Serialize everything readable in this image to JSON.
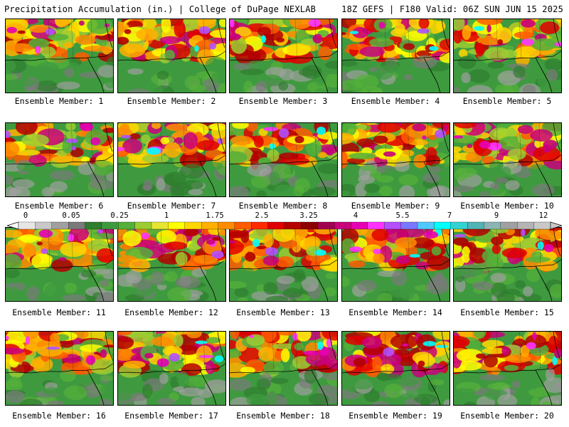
{
  "header": {
    "title": "Precipitation Accumulation (in.) | College of DuPage NEXLAB",
    "run_info": "18Z GEFS | F180 Valid: 06Z SUN JUN 15 2025"
  },
  "panels": [
    {
      "label": "Ensemble Member: 1"
    },
    {
      "label": "Ensemble Member: 2"
    },
    {
      "label": "Ensemble Member: 3"
    },
    {
      "label": "Ensemble Member: 4"
    },
    {
      "label": "Ensemble Member: 5"
    },
    {
      "label": "Ensemble Member: 6"
    },
    {
      "label": "Ensemble Member: 7"
    },
    {
      "label": "Ensemble Member: 8"
    },
    {
      "label": "Ensemble Member: 9"
    },
    {
      "label": "Ensemble Member: 10"
    },
    {
      "label": "Ensemble Member: 11"
    },
    {
      "label": "Ensemble Member: 12"
    },
    {
      "label": "Ensemble Member: 13"
    },
    {
      "label": "Ensemble Member: 14"
    },
    {
      "label": "Ensemble Member: 15"
    },
    {
      "label": "Ensemble Member: 16"
    },
    {
      "label": "Ensemble Member: 17"
    },
    {
      "label": "Ensemble Member: 18"
    },
    {
      "label": "Ensemble Member: 19"
    },
    {
      "label": "Ensemble Member: 20"
    }
  ],
  "colorbar": {
    "labels": [
      "0",
      "0.05",
      "0.25",
      "1",
      "1.75",
      "2.5",
      "3.25",
      "4",
      "5.5",
      "7",
      "9",
      "12"
    ],
    "colors": [
      "#e6e6e6",
      "#c8c8c8",
      "#a0a0a0",
      "#7a7a7a",
      "#2f7d2f",
      "#3f9a3f",
      "#55b03a",
      "#9ccc32",
      "#e6e632",
      "#ffff00",
      "#ffd700",
      "#ffb000",
      "#ff8c00",
      "#ff5a00",
      "#ff2a00",
      "#e00000",
      "#b40000",
      "#8c0000",
      "#a00050",
      "#c8007c",
      "#e600b4",
      "#ff32ff",
      "#b450ff",
      "#7878ff",
      "#50c8ff",
      "#00ffff",
      "#32d2d2",
      "#50b4b4",
      "#8cb4b4",
      "#a0a0a0",
      "#b4b4b4",
      "#c8c8c8"
    ]
  }
}
